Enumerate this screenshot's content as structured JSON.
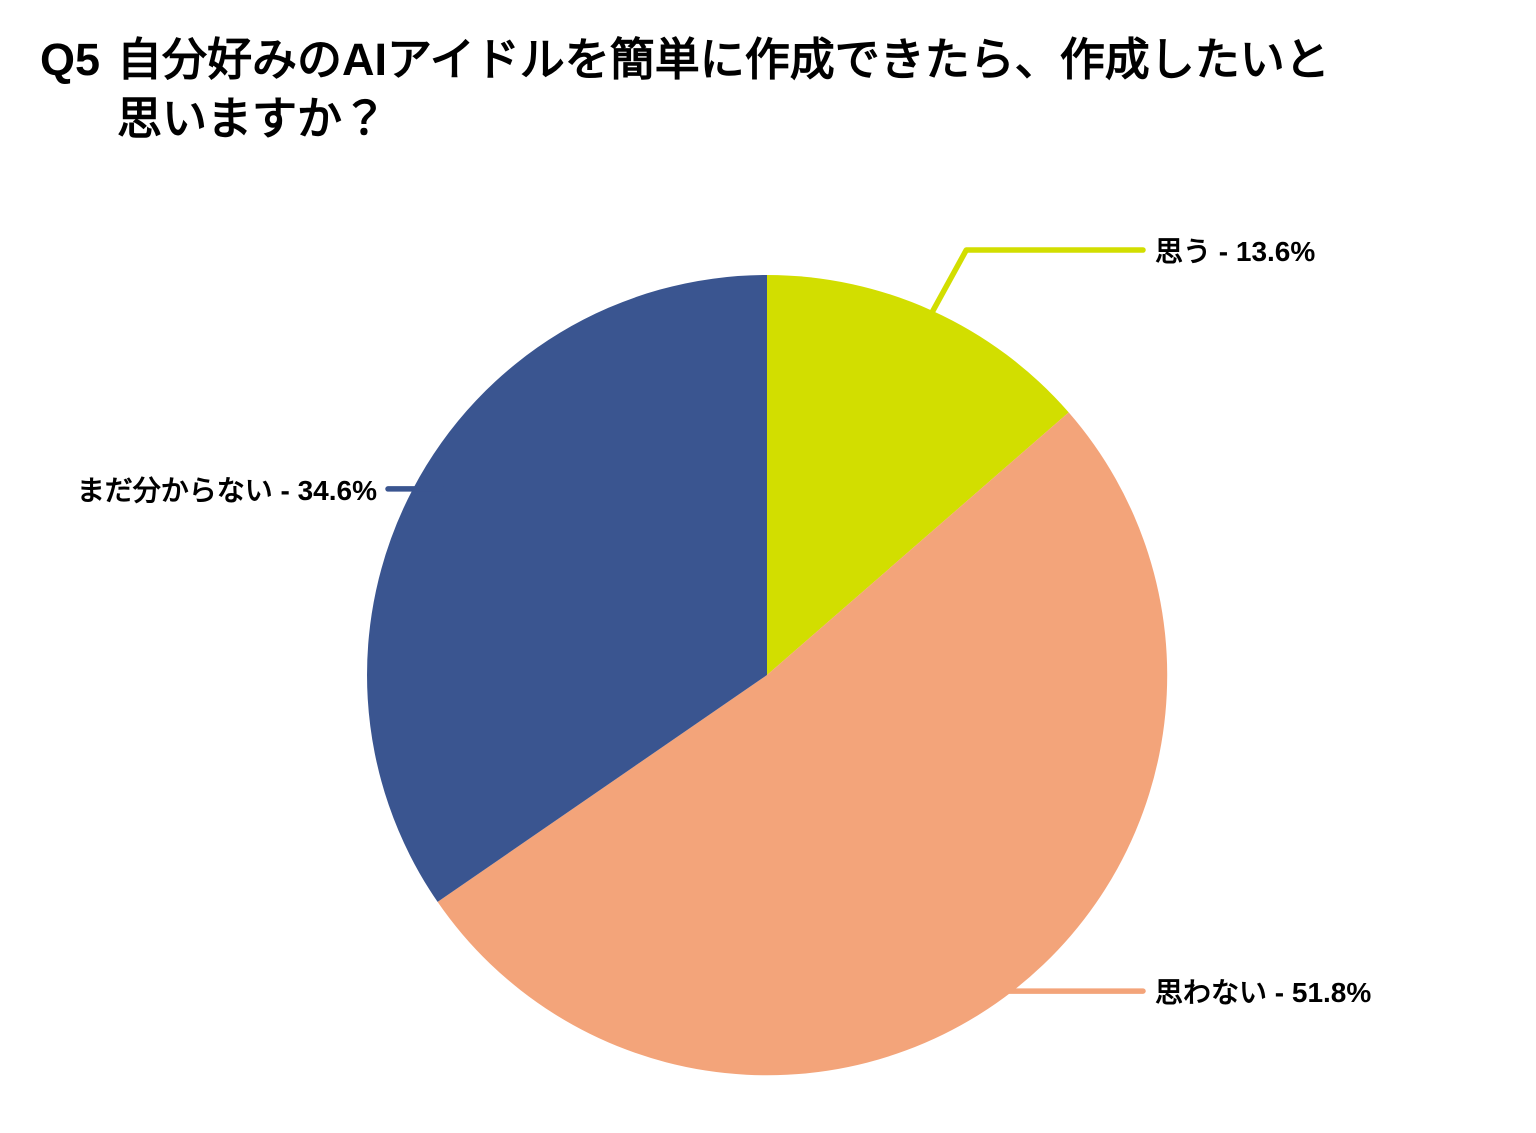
{
  "page": {
    "background_color": "#ffffff"
  },
  "title": {
    "prefix": "Q5",
    "text": "自分好みのAIアイドルを簡単に作成できたら、作成したいと思いますか？"
  },
  "chart_data": {
    "type": "pie",
    "title": "Q5 自分好みのAIアイドルを簡単に作成できたら、作成したいと思いますか？",
    "start_angle_deg": 0,
    "direction": "clockwise",
    "labels_style": "callout-lines",
    "legend_position": "none",
    "slices": [
      {
        "label": "思う",
        "value": 13.6,
        "unit": "%",
        "color": "#D2DE00",
        "display": "思う - 13.6%"
      },
      {
        "label": "思わない",
        "value": 51.8,
        "unit": "%",
        "color": "#F3A47A",
        "display": "思わない - 51.8%"
      },
      {
        "label": "まだ分からない",
        "value": 34.6,
        "unit": "%",
        "color": "#3A5590",
        "display": "まだ分からない - 34.6%"
      }
    ]
  }
}
